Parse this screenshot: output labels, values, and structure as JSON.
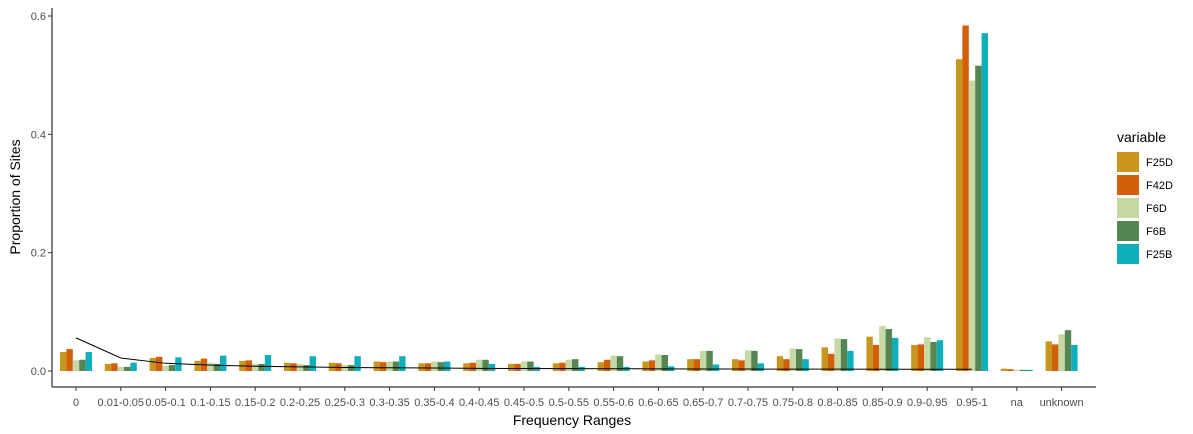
{
  "chart_data": {
    "type": "bar",
    "xlabel": "Frequency Ranges",
    "ylabel": "Proportion of Sites",
    "ylim": [
      0,
      0.6
    ],
    "yticks": [
      0.0,
      0.2,
      0.4,
      0.6
    ],
    "ytick_labels": [
      "0.0",
      "0.2",
      "0.4",
      "0.6"
    ],
    "grid": false,
    "legend": {
      "title": "variable",
      "position": "right"
    },
    "categories": [
      "0",
      "0.01-0.05",
      "0.05-0.1",
      "0.1-0.15",
      "0.15-0.2",
      "0.2-0.25",
      "0.25-0.3",
      "0.3-0.35",
      "0.35-0.4",
      "0.4-0.45",
      "0.45-0.5",
      "0.5-0.55",
      "0.55-0.6",
      "0.6-0.65",
      "0.65-0.7",
      "0.7-0.75",
      "0.75-0.8",
      "0.8-0.85",
      "0.85-0.9",
      "0.9-0.95",
      "0.95-1",
      "na",
      "unknown"
    ],
    "tick_labels": [
      "0",
      "0.01-0.05",
      "0.05-0.1",
      "0.1-0.15",
      "0.15-0.2",
      "0.2-0.25",
      "0.25-0.3",
      "0.3-0.35",
      "0.35-0.4",
      "0.4-0.45",
      "0.45-0.5",
      "0.5-0.55",
      "0.55-0.6",
      "0.6-0.65",
      "0.65-0.7",
      "0.7-0.75",
      "0.75-0.8",
      "0.8-0.85",
      "0.85-0.9",
      "0.9-0.95",
      "0.95-1",
      "na",
      "unknown"
    ],
    "series": [
      {
        "name": "F25D",
        "color": "#C8951F",
        "values": [
          0.032,
          0.012,
          0.022,
          0.017,
          0.017,
          0.014,
          0.014,
          0.016,
          0.013,
          0.013,
          0.012,
          0.013,
          0.015,
          0.016,
          0.02,
          0.02,
          0.025,
          0.04,
          0.058,
          0.044,
          0.527,
          0.004,
          0.05
        ]
      },
      {
        "name": "F42D",
        "color": "#D35F0B",
        "values": [
          0.037,
          0.013,
          0.024,
          0.021,
          0.018,
          0.013,
          0.013,
          0.015,
          0.013,
          0.014,
          0.012,
          0.014,
          0.019,
          0.018,
          0.02,
          0.018,
          0.02,
          0.029,
          0.044,
          0.045,
          0.584,
          0.003,
          0.045
        ]
      },
      {
        "name": "F6D",
        "color": "#C6D9A4",
        "values": [
          0.018,
          0.007,
          0.009,
          0.014,
          0.012,
          0.012,
          0.01,
          0.016,
          0.016,
          0.019,
          0.016,
          0.019,
          0.026,
          0.028,
          0.034,
          0.035,
          0.038,
          0.055,
          0.076,
          0.057,
          0.491,
          0.002,
          0.062
        ]
      },
      {
        "name": "F6B",
        "color": "#538652",
        "values": [
          0.019,
          0.007,
          0.01,
          0.012,
          0.012,
          0.01,
          0.01,
          0.016,
          0.015,
          0.019,
          0.016,
          0.02,
          0.025,
          0.027,
          0.034,
          0.034,
          0.037,
          0.054,
          0.071,
          0.049,
          0.516,
          0.002,
          0.069
        ]
      },
      {
        "name": "F25B",
        "color": "#0FAEBA",
        "values": [
          0.032,
          0.014,
          0.023,
          0.026,
          0.027,
          0.025,
          0.025,
          0.025,
          0.016,
          0.012,
          0.007,
          0.007,
          0.007,
          0.008,
          0.011,
          0.013,
          0.02,
          0.034,
          0.056,
          0.052,
          0.571,
          0.002,
          0.044
        ]
      }
    ],
    "trend_line": {
      "color": "#000000",
      "values": [
        0.056,
        0.022,
        0.013,
        0.01,
        0.008,
        0.007,
        0.006,
        0.0055,
        0.005,
        0.0045,
        0.0042,
        0.004,
        0.0038,
        0.0036,
        0.0034,
        0.0033,
        0.0032,
        0.0031,
        0.003,
        0.003,
        0.003
      ]
    }
  }
}
